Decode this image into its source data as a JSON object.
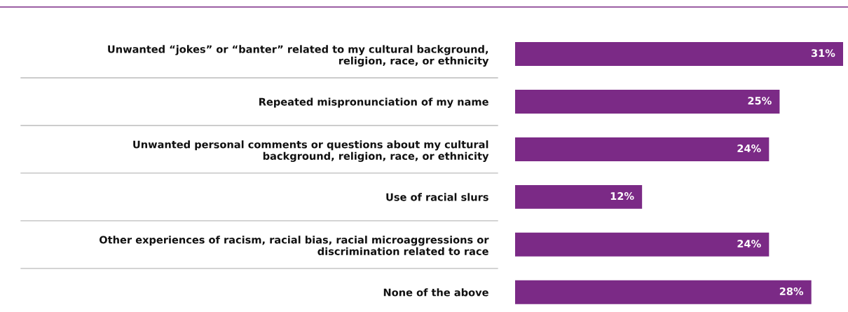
{
  "chart_data": {
    "type": "bar",
    "orientation": "horizontal",
    "categories": [
      "Unwanted “jokes” or “banter” related to my cultural background,\nreligion, race, or ethnicity",
      "Repeated mispronunciation of my name",
      "Unwanted personal comments or questions about my cultural\nbackground, religion, race, or ethnicity",
      "Use of racial slurs",
      "Other experiences of racism, racial bias, racial microaggressions or\ndiscrimination related to race",
      "None of the above"
    ],
    "values": [
      31,
      25,
      24,
      12,
      24,
      28
    ],
    "value_labels": [
      "31%",
      "25%",
      "24%",
      "12%",
      "24%",
      "28%"
    ],
    "color": "#7b2a86",
    "grid": false,
    "legend": false
  }
}
